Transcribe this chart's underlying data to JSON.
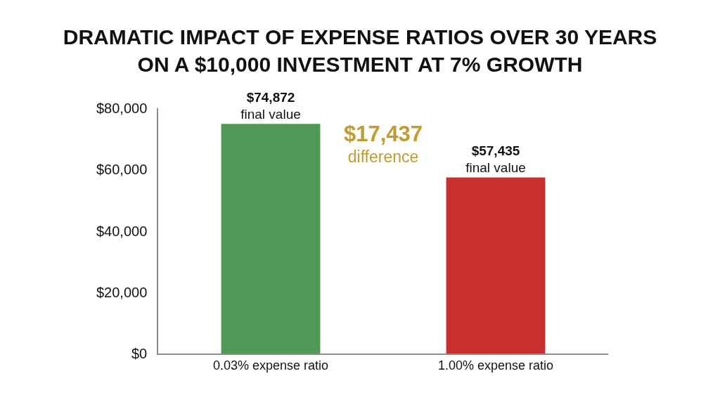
{
  "chart_data": {
    "type": "bar",
    "title": "DRAMATIC IMPACT OF EXPENSE RATIOS OVER 30 YEARS\nON A $10,000 INVESTMENT AT 7% GROWTH",
    "categories": [
      "0.03% expense ratio",
      "1.00% expense ratio"
    ],
    "values": [
      74872,
      57435
    ],
    "colors": [
      "#509855",
      "#c83030"
    ],
    "value_labels": [
      "$74,872\nfinal value",
      "$57,435\nfinal value"
    ],
    "annotations": [
      "$17,437\ndifference"
    ],
    "ylim": [
      0,
      80000
    ],
    "yticks": [
      {
        "value": 0,
        "label": "$0"
      },
      {
        "value": 20000,
        "label": "$20,000"
      },
      {
        "value": 40000,
        "label": "$40,000"
      },
      {
        "value": 60000,
        "label": "$60,000"
      },
      {
        "value": 80000,
        "label": "$80,000"
      }
    ]
  }
}
